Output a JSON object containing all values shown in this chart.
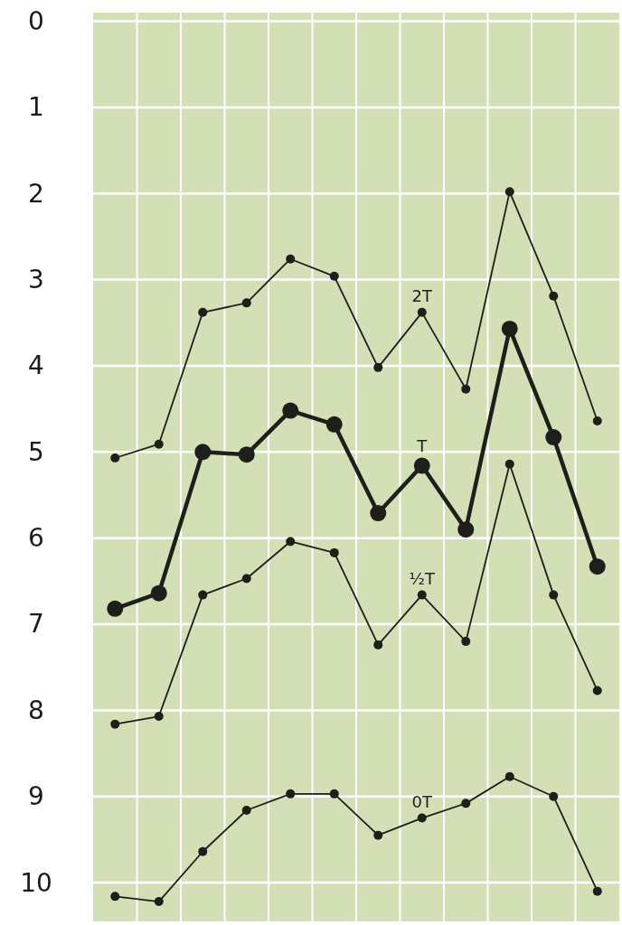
{
  "chart_data": {
    "type": "line",
    "categories": [
      null,
      null,
      null,
      null,
      null,
      null,
      null,
      null,
      null,
      null,
      null,
      null
    ],
    "series": [
      {
        "name": "2T",
        "color": "#1e1e1a",
        "values": [
          5.07,
          4.91,
          3.38,
          3.27,
          2.76,
          2.96,
          4.02,
          3.38,
          4.27,
          1.98,
          3.19,
          4.64
        ]
      },
      {
        "name": "T",
        "color": "#1e1e1a",
        "values": [
          6.82,
          6.64,
          5.0,
          5.03,
          4.52,
          4.68,
          5.71,
          5.16,
          5.9,
          3.57,
          4.83,
          6.33
        ]
      },
      {
        "name": "½T",
        "color": "#1e1e1a",
        "values": [
          8.16,
          8.07,
          6.66,
          6.47,
          6.04,
          6.17,
          7.24,
          6.66,
          7.2,
          5.14,
          6.66,
          7.77
        ]
      },
      {
        "name": "0T",
        "color": "#1e1e1a",
        "values": [
          10.16,
          10.22,
          9.64,
          9.16,
          8.97,
          8.97,
          9.45,
          9.25,
          9.08,
          8.77,
          9.0,
          10.1
        ]
      }
    ],
    "ylim": [
      10.45,
      -0.1
    ],
    "yticks": [
      0,
      1,
      2,
      3,
      4,
      5,
      6,
      7,
      8,
      9,
      10
    ],
    "grid": true,
    "tick_labels": "y",
    "marker": "circle",
    "line_style": "solid"
  }
}
